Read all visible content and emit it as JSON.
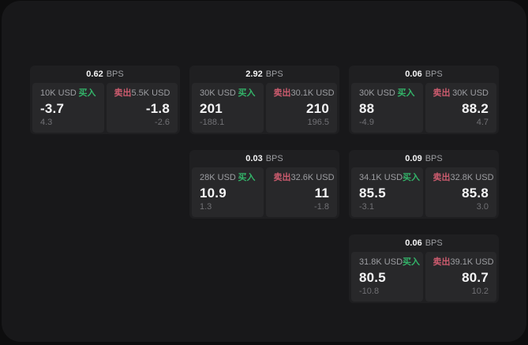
{
  "theme": {
    "outer_bg": "#0d0d0e",
    "container_bg": "#18181a",
    "card_bg": "#1f1f21",
    "panel_bg": "#28282a",
    "text_primary": "#f5f5f6",
    "text_secondary": "#9d9ea2",
    "text_tertiary": "#707074",
    "buy_color": "#33b469",
    "sell_color": "#cc5b6e"
  },
  "labels": {
    "bps_unit": "BPS",
    "buy": "买入",
    "sell": "卖出"
  },
  "cards": [
    {
      "bps": "0.62",
      "buy": {
        "size": "10K USD",
        "price": "-3.7",
        "delta": "4.3"
      },
      "sell": {
        "size": "5.5K USD",
        "price": "-1.8",
        "delta": "-2.6"
      }
    },
    {
      "bps": "2.92",
      "buy": {
        "size": "30K USD",
        "price": "201",
        "delta": "-188.1"
      },
      "sell": {
        "size": "30.1K USD",
        "price": "210",
        "delta": "196.5"
      }
    },
    {
      "bps": "0.06",
      "buy": {
        "size": "30K USD",
        "price": "88",
        "delta": "-4.9"
      },
      "sell": {
        "size": "30K USD",
        "price": "88.2",
        "delta": "4.7"
      }
    },
    {
      "bps": "0.03",
      "buy": {
        "size": "28K USD",
        "price": "10.9",
        "delta": "1.3"
      },
      "sell": {
        "size": "32.6K USD",
        "price": "11",
        "delta": "-1.8"
      }
    },
    {
      "bps": "0.09",
      "buy": {
        "size": "34.1K USD",
        "price": "85.5",
        "delta": "-3.1"
      },
      "sell": {
        "size": "32.8K USD",
        "price": "85.8",
        "delta": "3.0"
      }
    },
    {
      "bps": "0.06",
      "buy": {
        "size": "31.8K USD",
        "price": "80.5",
        "delta": "-10.8"
      },
      "sell": {
        "size": "39.1K USD",
        "price": "80.7",
        "delta": "10.2"
      }
    }
  ]
}
